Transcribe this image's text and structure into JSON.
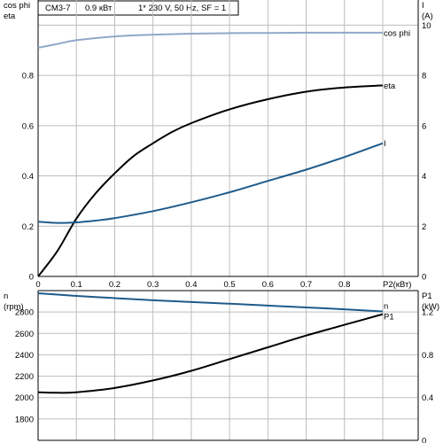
{
  "header": {
    "model": "CM3-7",
    "power": "0.9 кВт",
    "supply": "1* 230 V, 50 Hz, SF = 1"
  },
  "colors": {
    "grid": "#bdbdbd",
    "axis": "#000000",
    "eta": "#000000",
    "current": "#1f5b8a",
    "cosphi": "#8fa9c8",
    "n": "#1f5b8a",
    "p1": "#000000"
  },
  "chart_data": [
    {
      "type": "line",
      "id": "top",
      "left_axis_labels": [
        "cos phi",
        "eta"
      ],
      "right_axis_labels": [
        "I",
        "(A)"
      ],
      "xlabel": "P2(кВт)",
      "xlim": [
        0,
        0.9
      ],
      "xticks": [
        0,
        0.1,
        0.2,
        0.3,
        0.4,
        0.5,
        0.6,
        0.7,
        0.8
      ],
      "xtick_labels": [
        "0",
        "0.1",
        "0.2",
        "0.3",
        "0.4",
        "0.5",
        "0.6",
        "0.7",
        "0.8"
      ],
      "ylim_left": [
        0,
        1.1
      ],
      "yticks_left": [
        0,
        0.2,
        0.4,
        0.6,
        0.8
      ],
      "ytick_labels_left": [
        "0",
        "0.2",
        "0.4",
        "0.6",
        "0.8"
      ],
      "ylim_right": [
        0,
        11
      ],
      "yticks_right": [
        0,
        2,
        4,
        6,
        8,
        10
      ],
      "ytick_labels_right": [
        "0",
        "2",
        "4",
        "6",
        "8",
        "10"
      ],
      "series": [
        {
          "name": "cos phi",
          "axis": "left",
          "color_key": "cosphi",
          "x": [
            0,
            0.05,
            0.1,
            0.2,
            0.3,
            0.4,
            0.5,
            0.6,
            0.7,
            0.8,
            0.9
          ],
          "y": [
            0.91,
            0.925,
            0.94,
            0.955,
            0.962,
            0.966,
            0.968,
            0.969,
            0.97,
            0.97,
            0.97
          ]
        },
        {
          "name": "eta",
          "axis": "left",
          "color_key": "eta",
          "x": [
            0,
            0.05,
            0.1,
            0.15,
            0.2,
            0.25,
            0.3,
            0.35,
            0.4,
            0.5,
            0.6,
            0.7,
            0.8,
            0.9
          ],
          "y": [
            0,
            0.1,
            0.23,
            0.33,
            0.41,
            0.48,
            0.53,
            0.575,
            0.61,
            0.665,
            0.705,
            0.735,
            0.752,
            0.76
          ]
        },
        {
          "name": "I",
          "axis": "right",
          "color_key": "current",
          "x": [
            0,
            0.05,
            0.1,
            0.15,
            0.2,
            0.3,
            0.4,
            0.5,
            0.6,
            0.7,
            0.8,
            0.9
          ],
          "y": [
            2.18,
            2.13,
            2.15,
            2.22,
            2.32,
            2.6,
            2.95,
            3.35,
            3.8,
            4.25,
            4.75,
            5.3
          ]
        }
      ]
    },
    {
      "type": "line",
      "id": "bottom",
      "left_axis_labels": [
        "n",
        "(rpm)"
      ],
      "right_axis_labels": [
        "P1",
        "(kW)"
      ],
      "xlim": [
        0,
        0.9
      ],
      "xticks": [
        0,
        0.1,
        0.2,
        0.3,
        0.4,
        0.5,
        0.6,
        0.7,
        0.8
      ],
      "ylim_left": [
        1600,
        3000
      ],
      "yticks_left": [
        1800,
        2000,
        2200,
        2400,
        2600,
        2800
      ],
      "ytick_labels_left": [
        "1800",
        "2000",
        "2200",
        "2400",
        "2600",
        "2800"
      ],
      "ylim_right": [
        0,
        1.4
      ],
      "yticks_right": [
        0,
        0.4,
        0.8,
        1.2
      ],
      "ytick_labels_right": [
        "0",
        "0.4",
        "0.8",
        "1.2"
      ],
      "series": [
        {
          "name": "n",
          "axis": "left",
          "color_key": "n",
          "x": [
            0,
            0.1,
            0.2,
            0.3,
            0.4,
            0.5,
            0.6,
            0.7,
            0.8,
            0.9
          ],
          "y": [
            2975,
            2950,
            2930,
            2910,
            2893,
            2877,
            2860,
            2843,
            2825,
            2805
          ]
        },
        {
          "name": "P1",
          "axis": "right",
          "color_key": "p1",
          "x": [
            0,
            0.05,
            0.1,
            0.2,
            0.3,
            0.4,
            0.5,
            0.6,
            0.7,
            0.8,
            0.9
          ],
          "y": [
            0.45,
            0.445,
            0.45,
            0.49,
            0.56,
            0.65,
            0.76,
            0.87,
            0.98,
            1.08,
            1.18
          ]
        }
      ]
    }
  ]
}
